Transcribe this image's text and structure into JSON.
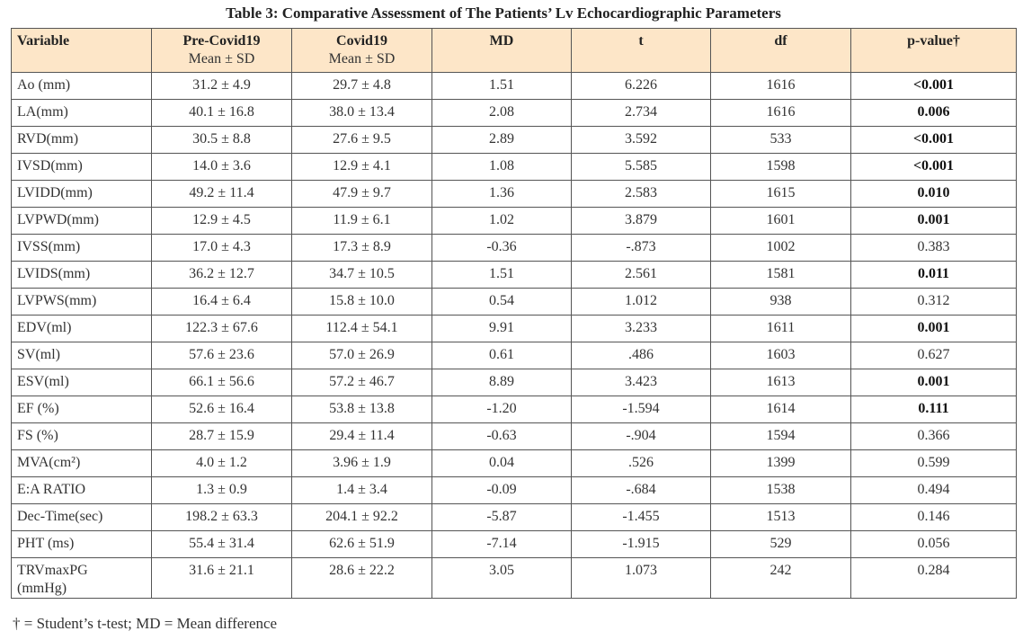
{
  "title": "Table 3: Comparative Assessment of The Patients’ Lv Echocardiographic Parameters",
  "table": {
    "header": [
      {
        "label": "Variable"
      },
      {
        "label": "Pre-Covid19",
        "sub": "Mean ± SD"
      },
      {
        "label": "Covid19",
        "sub": "Mean ± SD"
      },
      {
        "label": "MD"
      },
      {
        "label": "t"
      },
      {
        "label": "df"
      },
      {
        "label": "p-value†"
      }
    ],
    "rows": [
      [
        "Ao (mm)",
        "31.2 ± 4.9",
        "29.7 ± 4.8",
        "1.51",
        "6.226",
        "1616",
        "<0.001"
      ],
      [
        "LA(mm)",
        "40.1 ± 16.8",
        "38.0 ± 13.4",
        "2.08",
        "2.734",
        "1616",
        "0.006"
      ],
      [
        "RVD(mm)",
        "30.5 ± 8.8",
        "27.6 ± 9.5",
        "2.89",
        "3.592",
        "533",
        "<0.001"
      ],
      [
        "IVSD(mm)",
        "14.0 ± 3.6",
        "12.9 ± 4.1",
        "1.08",
        "5.585",
        "1598",
        "<0.001"
      ],
      [
        "LVIDD(mm)",
        "49.2 ± 11.4",
        "47.9 ± 9.7",
        "1.36",
        "2.583",
        "1615",
        "0.010"
      ],
      [
        "LVPWD(mm)",
        "12.9 ± 4.5",
        "11.9 ± 6.1",
        "1.02",
        "3.879",
        "1601",
        "0.001"
      ],
      [
        "IVSS(mm)",
        "17.0 ± 4.3",
        "17.3 ± 8.9",
        "-0.36",
        "-.873",
        "1002",
        "0.383"
      ],
      [
        "LVIDS(mm)",
        "36.2 ± 12.7",
        "34.7 ± 10.5",
        "1.51",
        "2.561",
        "1581",
        "0.011"
      ],
      [
        "LVPWS(mm)",
        "16.4 ± 6.4",
        "15.8 ± 10.0",
        "0.54",
        "1.012",
        "938",
        "0.312"
      ],
      [
        "EDV(ml)",
        "122.3 ± 67.6",
        "112.4 ± 54.1",
        "9.91",
        "3.233",
        "1611",
        "0.001"
      ],
      [
        "SV(ml)",
        "57.6 ± 23.6",
        "57.0 ± 26.9",
        "0.61",
        ".486",
        "1603",
        "0.627"
      ],
      [
        "ESV(ml)",
        "66.1 ± 56.6",
        "57.2 ± 46.7",
        "8.89",
        "3.423",
        "1613",
        "0.001"
      ],
      [
        "EF (%)",
        "52.6 ± 16.4",
        "53.8 ± 13.8",
        "-1.20",
        "-1.594",
        "1614",
        "0.111"
      ],
      [
        "FS (%)",
        "28.7 ± 15.9",
        "29.4 ± 11.4",
        "-0.63",
        "-.904",
        "1594",
        "0.366"
      ],
      [
        "MVA(cm²)",
        "4.0 ± 1.2",
        "3.96 ± 1.9",
        "0.04",
        ".526",
        "1399",
        "0.599"
      ],
      [
        "E:A RATIO",
        "1.3 ± 0.9",
        "1.4 ± 3.4",
        "-0.09",
        "-.684",
        "1538",
        "0.494"
      ],
      [
        "Dec-Time(sec)",
        "198.2 ± 63.3",
        "204.1 ± 92.2",
        "-5.87",
        "-1.455",
        "1513",
        "0.146"
      ],
      [
        "PHT (ms)",
        "55.4 ± 31.4",
        "62.6 ± 51.9",
        "-7.14",
        "-1.915",
        "529",
        "0.056"
      ],
      [
        "TRVmaxPG\n(mmHg)",
        "31.6 ± 21.1",
        "28.6 ± 22.2",
        "3.05",
        "1.073",
        "242",
        "0.284"
      ]
    ],
    "p_bold": [
      true,
      true,
      true,
      true,
      true,
      true,
      false,
      true,
      false,
      true,
      false,
      true,
      true,
      false,
      false,
      false,
      false,
      false,
      false
    ]
  },
  "footnote": "† = Student’s t-test; MD = Mean difference"
}
